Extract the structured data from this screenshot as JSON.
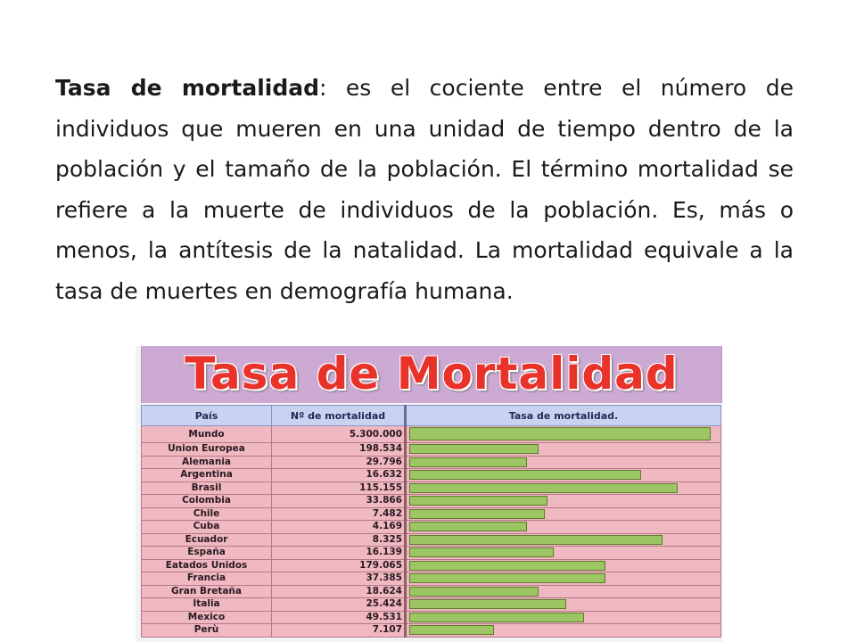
{
  "paragraph": {
    "term": "Tasa de mortalidad",
    "text": ": es el cociente entre el número de individuos que mueren en una unidad de tiempo dentro de la población y el tamaño de la población. El término mortalidad se refiere a la muerte de individuos de la población. Es, más o menos, la antítesis de la natalidad. La mortalidad equivale a la tasa de muertes en demografía humana."
  },
  "figure": {
    "title": "Tasa de Mortalidad",
    "columns": [
      "País",
      "Nº de mortalidad",
      "Tasa de mortalidad."
    ],
    "colors": {
      "title": "#e8322a",
      "bar": "#9cc564",
      "row": "#f0b8c0",
      "header": "#c7d3f1",
      "title_band": "#cdaad4"
    },
    "rows": [
      {
        "country": "Mundo",
        "value": "5.300.000",
        "bar": 1.0
      },
      {
        "country": "Union Europea",
        "value": "198.534",
        "bar": 0.43
      },
      {
        "country": "Alemania",
        "value": "29.796",
        "bar": 0.39
      },
      {
        "country": "Argentina",
        "value": "16.632",
        "bar": 0.77
      },
      {
        "country": "Brasil",
        "value": "115.155",
        "bar": 0.89
      },
      {
        "country": "Colombia",
        "value": "33.866",
        "bar": 0.46
      },
      {
        "country": "Chile",
        "value": "7.482",
        "bar": 0.45
      },
      {
        "country": "Cuba",
        "value": "4.169",
        "bar": 0.39
      },
      {
        "country": "Ecuador",
        "value": "8.325",
        "bar": 0.84
      },
      {
        "country": "España",
        "value": "16.139",
        "bar": 0.48
      },
      {
        "country": "Eatados Unidos",
        "value": "179.065",
        "bar": 0.65
      },
      {
        "country": "Francia",
        "value": "37.385",
        "bar": 0.65
      },
      {
        "country": "Gran Bretaña",
        "value": "18.624",
        "bar": 0.43
      },
      {
        "country": "Italia",
        "value": "25.424",
        "bar": 0.52
      },
      {
        "country": "Mexico",
        "value": "49.531",
        "bar": 0.58
      },
      {
        "country": "Perù",
        "value": "7.107",
        "bar": 0.28
      }
    ]
  }
}
